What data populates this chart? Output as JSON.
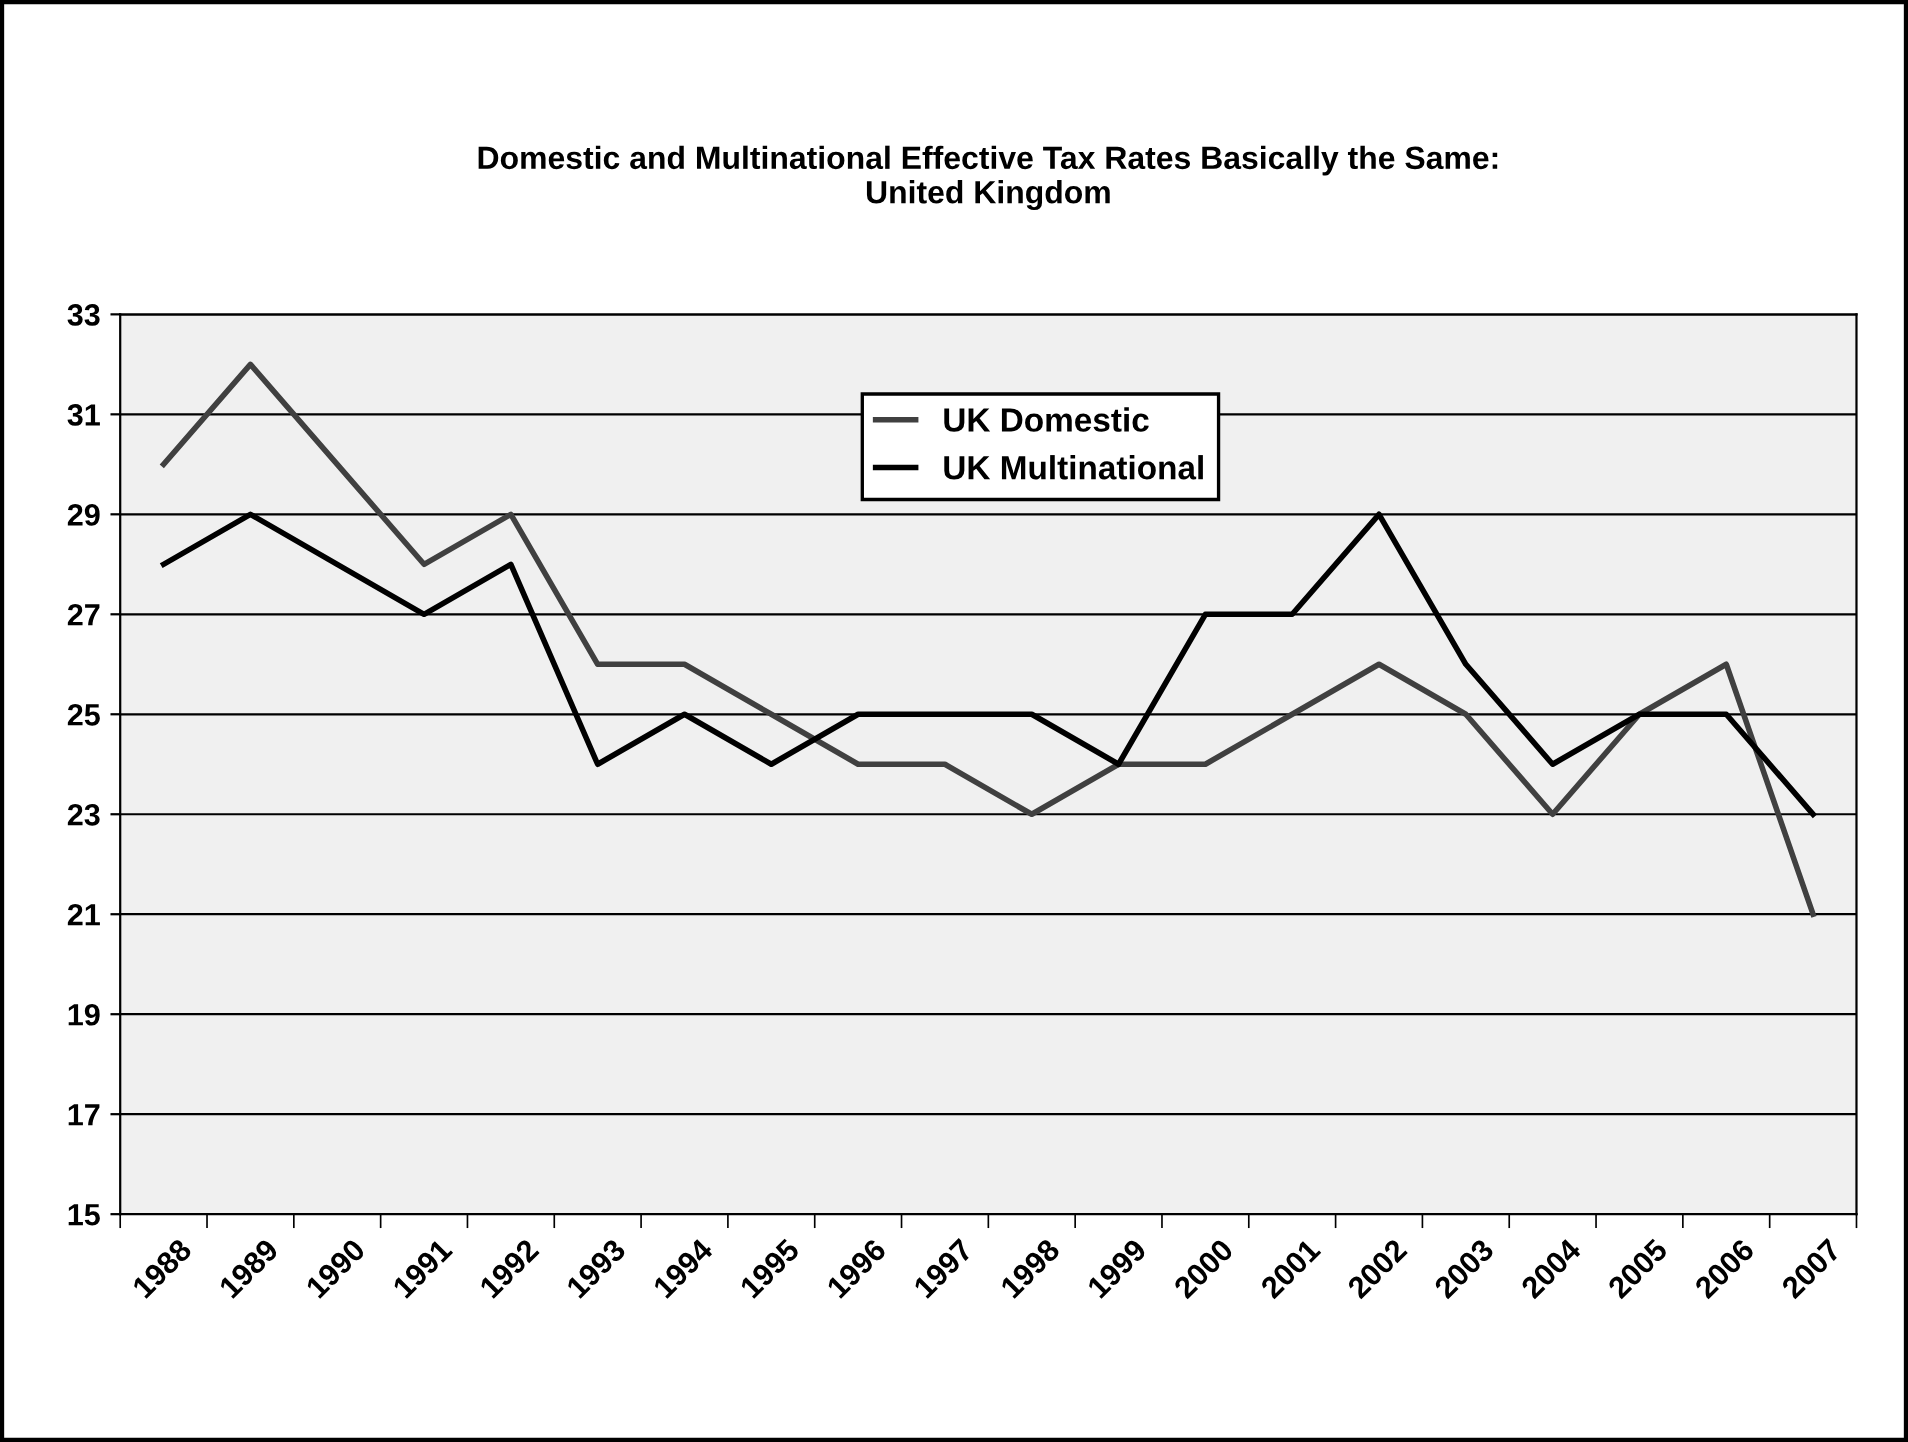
{
  "chart_data": {
    "type": "line",
    "title": "Domestic and Multinational Effective Tax Rates Basically the Same:\nUnited Kingdom",
    "categories": [
      "1988",
      "1989",
      "1990",
      "1991",
      "1992",
      "1993",
      "1994",
      "1995",
      "1996",
      "1997",
      "1998",
      "1999",
      "2000",
      "2001",
      "2002",
      "2003",
      "2004",
      "2005",
      "2006",
      "2007"
    ],
    "series": [
      {
        "name": "UK Domestic",
        "color": "#404040",
        "values": [
          30,
          32,
          30,
          28,
          29,
          26,
          26,
          25,
          24,
          24,
          23,
          24,
          24,
          25,
          26,
          25,
          23,
          25,
          26,
          21
        ]
      },
      {
        "name": "UK Multinational",
        "color": "#000000",
        "values": [
          28,
          29,
          28,
          27,
          28,
          24,
          25,
          24,
          25,
          25,
          25,
          24,
          27,
          27,
          29,
          26,
          24,
          25,
          25,
          23
        ]
      }
    ],
    "ylim": [
      15,
      33
    ],
    "yticks": [
      15,
      17,
      19,
      21,
      23,
      25,
      27,
      29,
      31,
      33
    ],
    "grid": "y",
    "legend": "top",
    "marker": "none",
    "line_style": "solid"
  }
}
